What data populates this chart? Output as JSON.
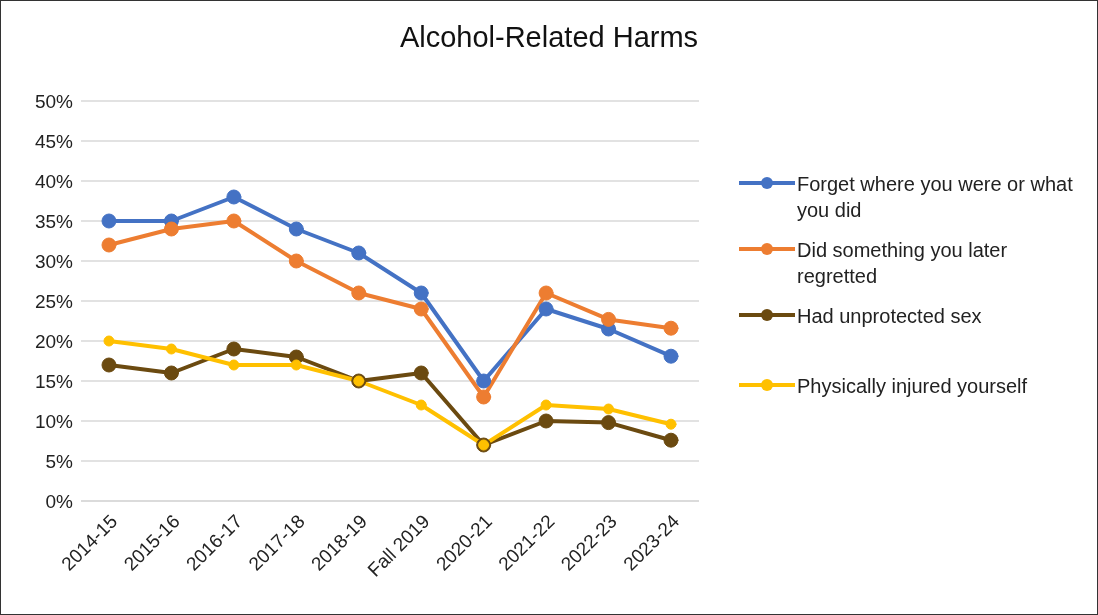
{
  "chart_data": {
    "type": "line",
    "title": "Alcohol-Related Harms",
    "categories": [
      "2014-15",
      "2015-16",
      "2016-17",
      "2017-18",
      "2018-19",
      "Fall 2019",
      "2020-21",
      "2021-22",
      "2022-23",
      "2023-24"
    ],
    "series": [
      {
        "name": "Forget where you were or what you did",
        "color": "#4472c4",
        "values": [
          35,
          35,
          38,
          34,
          31,
          26,
          15,
          24,
          21.5,
          18.1
        ]
      },
      {
        "name": "Did something you later regretted",
        "color": "#ed7d31",
        "values": [
          32,
          34,
          35,
          30,
          26,
          24,
          13,
          26,
          22.7,
          21.6
        ]
      },
      {
        "name": "Had unprotected sex",
        "color": "#6b4a10",
        "values": [
          17,
          16,
          19,
          18,
          15,
          16,
          7,
          10,
          9.8,
          7.6
        ]
      },
      {
        "name": "Physically injured yourself",
        "color": "#ffc000",
        "values": [
          20,
          19,
          17,
          17,
          15,
          12,
          7,
          12,
          11.5,
          9.6
        ]
      }
    ],
    "ylim": [
      0,
      50
    ],
    "yticks": [
      {
        "value": 0,
        "label": "0%"
      },
      {
        "value": 5,
        "label": "5%"
      },
      {
        "value": 10,
        "label": "10%"
      },
      {
        "value": 15,
        "label": "15%"
      },
      {
        "value": 20,
        "label": "20%"
      },
      {
        "value": 25,
        "label": "25%"
      },
      {
        "value": 30,
        "label": "30%"
      },
      {
        "value": 35,
        "label": "35%"
      },
      {
        "value": 40,
        "label": "40%"
      },
      {
        "value": 45,
        "label": "45%"
      },
      {
        "value": 50,
        "label": "50%"
      }
    ],
    "grid": "y",
    "legend": "right",
    "marker": "circle",
    "line_style": "solid"
  }
}
